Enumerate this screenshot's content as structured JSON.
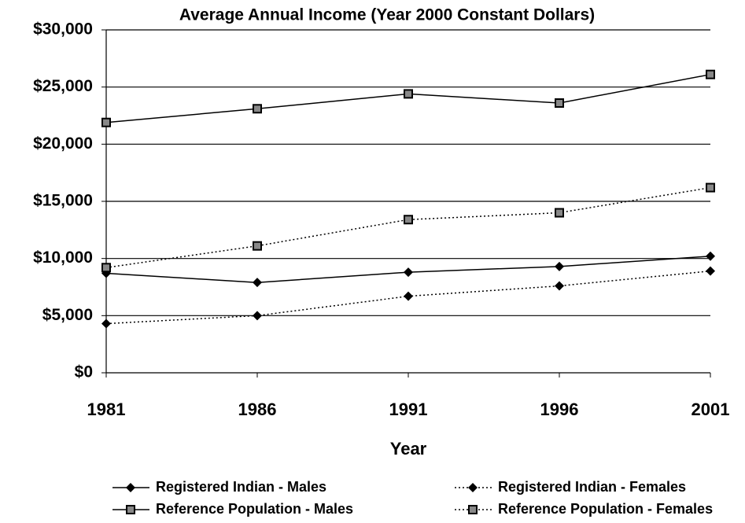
{
  "chart_data": {
    "type": "line",
    "title": "Average Annual Income (Year 2000 Constant  Dollars)",
    "x_label": "Year",
    "categories": [
      "1981",
      "1986",
      "1991",
      "1996",
      "2001"
    ],
    "series": [
      {
        "name": "Registered Indian - Males",
        "color": "#000000",
        "line_style": "solid",
        "marker": "diamond",
        "values": [
          8700,
          7900,
          8800,
          9300,
          10200
        ]
      },
      {
        "name": "Registered Indian - Females",
        "color": "#000000",
        "line_style": "dotted",
        "marker": "diamond",
        "values": [
          4300,
          5000,
          6700,
          7600,
          8900
        ]
      },
      {
        "name": "Reference Population - Males",
        "color": "#000000",
        "line_style": "solid",
        "marker": "square",
        "values": [
          21900,
          23100,
          24400,
          23600,
          26100
        ]
      },
      {
        "name": "Reference Population - Females",
        "color": "#000000",
        "line_style": "dotted",
        "marker": "square",
        "values": [
          9200,
          11100,
          13400,
          14000,
          16200
        ]
      }
    ],
    "ylim": [
      0,
      30000
    ],
    "yticks": [
      {
        "value": 0,
        "label": "$0"
      },
      {
        "value": 5000,
        "label": "$5,000"
      },
      {
        "value": 10000,
        "label": "$10,000"
      },
      {
        "value": 15000,
        "label": "$15,000"
      },
      {
        "value": 20000,
        "label": "$20,000"
      },
      {
        "value": 25000,
        "label": "$25,000"
      },
      {
        "value": 30000,
        "label": "$30,000"
      }
    ],
    "grid": true,
    "legend": "bottom"
  }
}
